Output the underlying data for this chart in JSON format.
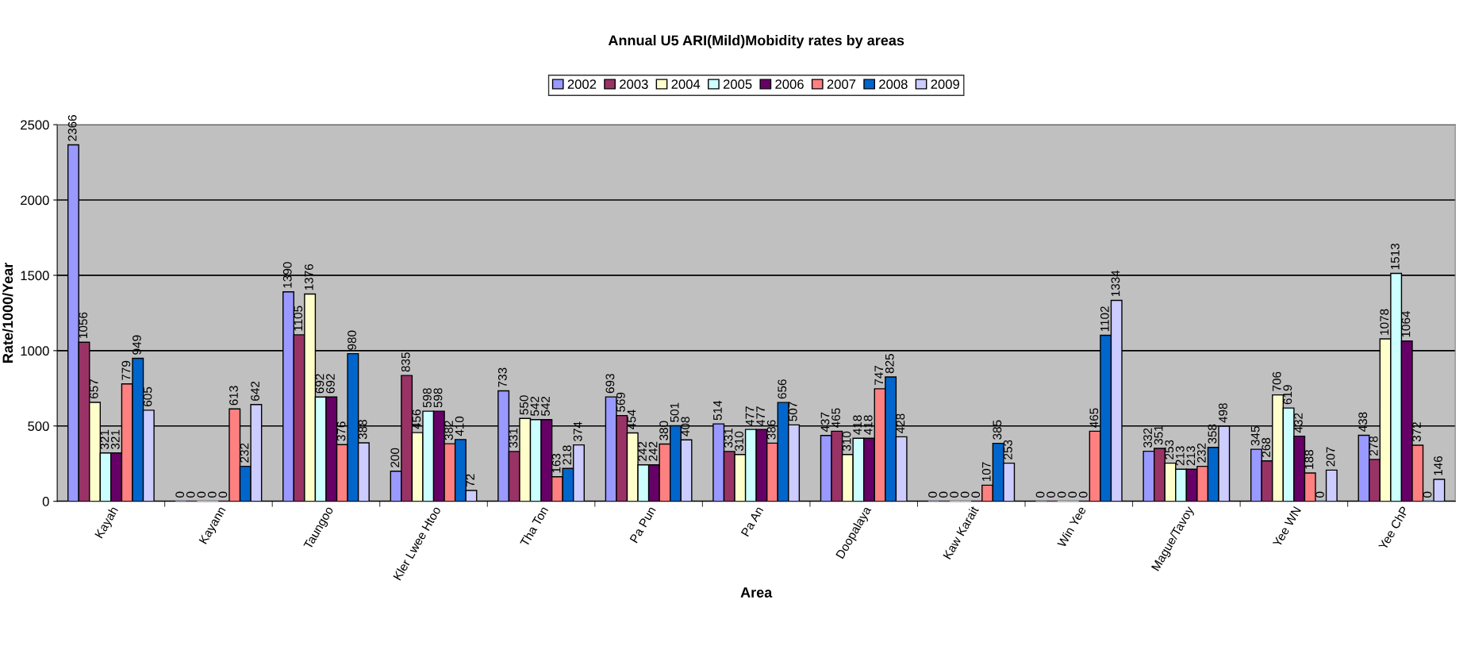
{
  "chart_data": {
    "type": "bar",
    "title": "Annual U5 ARI(Mild)Mobidity rates by areas",
    "xlabel": "Area",
    "ylabel": "Rate/1000/Year",
    "categories": [
      "Kayah",
      "Kayann",
      "Taungoo",
      "Kler Lwee Htoo",
      "Tha Ton",
      "Pa Pun",
      "Pa An",
      "Doopalaya",
      "Kaw Karait",
      "Win Yee",
      "Mague/Tavoy",
      "Yee WN",
      "Yee ChP"
    ],
    "series": [
      {
        "name": "2002",
        "color": "#9999ff",
        "values": [
          2366,
          0,
          1390,
          200,
          733,
          693,
          514,
          437,
          0,
          0,
          332,
          345,
          438
        ]
      },
      {
        "name": "2003",
        "color": "#993366",
        "values": [
          1056,
          0,
          1105,
          835,
          331,
          569,
          331,
          465,
          0,
          0,
          351,
          268,
          278
        ]
      },
      {
        "name": "2004",
        "color": "#ffffcc",
        "values": [
          657,
          0,
          1376,
          456,
          550,
          454,
          310,
          310,
          0,
          0,
          253,
          706,
          1078
        ]
      },
      {
        "name": "2005",
        "color": "#ccffff",
        "values": [
          321,
          0,
          692,
          598,
          542,
          242,
          477,
          418,
          0,
          0,
          213,
          619,
          1513
        ]
      },
      {
        "name": "2006",
        "color": "#660066",
        "values": [
          321,
          0,
          692,
          598,
          542,
          242,
          477,
          418,
          0,
          0,
          213,
          432,
          1064
        ]
      },
      {
        "name": "2007",
        "color": "#ff8080",
        "values": [
          779,
          613,
          376,
          382,
          163,
          380,
          386,
          747,
          107,
          465,
          232,
          188,
          372
        ]
      },
      {
        "name": "2008",
        "color": "#0066cc",
        "values": [
          949,
          232,
          980,
          410,
          218,
          501,
          656,
          825,
          385,
          1102,
          358,
          0,
          0
        ]
      },
      {
        "name": "2009",
        "color": "#ccccff",
        "values": [
          605,
          642,
          388,
          72,
          374,
          408,
          507,
          428,
          253,
          1334,
          498,
          207,
          146
        ]
      }
    ],
    "ylim": [
      0,
      2500
    ],
    "yticks": [
      0,
      500,
      1000,
      1500,
      2000,
      2500
    ],
    "grid": "y",
    "legend": "top",
    "data_labels": true
  }
}
